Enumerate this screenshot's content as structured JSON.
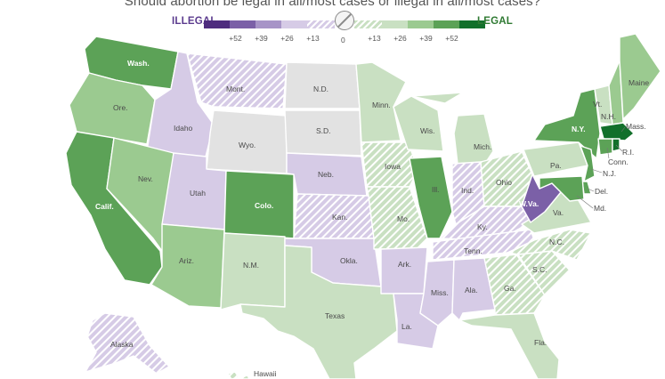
{
  "title": "Should abortion be legal in all/most cases or illegal in all/most cases?",
  "legend": {
    "illegal_label": "ILLEGAL",
    "legal_label": "LEGAL",
    "zero_label": "0",
    "ticks": [
      "+52",
      "+39",
      "+26",
      "+13",
      "+13",
      "+26",
      "+39",
      "+52"
    ]
  },
  "colors": {
    "illegal_52": "#4e2c7e",
    "illegal_39": "#7b60a7",
    "illegal_26": "#a794c7",
    "illegal_13": "#d6cbe6",
    "neutral": "#e2e2e2",
    "legal_13": "#c9e0c2",
    "legal_26": "#9bca90",
    "legal_39": "#5ca257",
    "legal_52": "#12702b",
    "hatch_stroke": "#ffffff"
  },
  "states": {
    "washington": "Wash.",
    "oregon": "Ore.",
    "california": "Calif.",
    "idaho": "Idaho",
    "nevada": "Nev.",
    "montana": "Mont.",
    "wyoming": "Wyo.",
    "utah": "Utah",
    "colorado": "Colo.",
    "arizona": "Ariz.",
    "new_mexico": "N.M.",
    "north_dakota": "N.D.",
    "south_dakota": "S.D.",
    "nebraska": "Neb.",
    "kansas": "Kan.",
    "oklahoma": "Okla.",
    "texas": "Texas",
    "minnesota": "Minn.",
    "iowa": "Iowa",
    "missouri": "Mo.",
    "arkansas": "Ark.",
    "louisiana": "La.",
    "wisconsin": "Wis.",
    "illinois": "Ill.",
    "michigan": "Mich.",
    "indiana": "Ind.",
    "ohio": "Ohio",
    "kentucky": "Ky.",
    "tennessee": "Tenn.",
    "mississippi": "Miss.",
    "alabama": "Ala.",
    "georgia": "Ga.",
    "florida": "Fla.",
    "south_carolina": "S.C.",
    "north_carolina": "N.C.",
    "virginia": "Va.",
    "west_virginia": "W.Va.",
    "pennsylvania": "Pa.",
    "new_york": "N.Y.",
    "vermont": "Vt.",
    "new_hampshire": "N.H.",
    "maine": "Maine",
    "massachusetts": "Mass.",
    "rhode_island": "R.I.",
    "connecticut": "Conn.",
    "new_jersey": "N.J.",
    "delaware": "Del.",
    "maryland": "Md.",
    "alaska": "Alaska",
    "hawaii": "Hawaii"
  }
}
